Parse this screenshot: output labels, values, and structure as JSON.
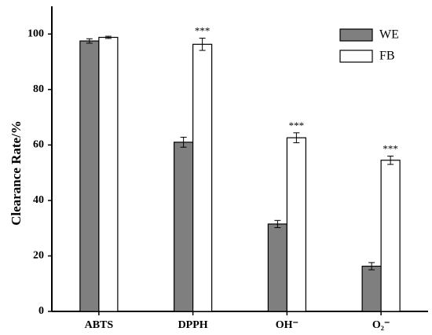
{
  "chart_data": {
    "type": "bar",
    "ylabel": "Clearance Rate/%",
    "categories": [
      "ABTS",
      "DPPH",
      "OH⁻",
      "O₂⁻"
    ],
    "series": [
      {
        "name": "WE",
        "color": "#7f7f7f",
        "values": [
          97.5,
          61,
          31.5,
          16.3
        ],
        "errors": [
          0.8,
          1.8,
          1.3,
          1.3
        ],
        "annotations": [
          null,
          null,
          null,
          null
        ]
      },
      {
        "name": "FB",
        "color": "#ffffff",
        "values": [
          98.8,
          96.3,
          62.6,
          54.5
        ],
        "errors": [
          0.4,
          2.2,
          1.8,
          1.5
        ],
        "annotations": [
          null,
          "***",
          "***",
          "***"
        ]
      }
    ],
    "ylim": [
      0,
      110
    ],
    "yticks": [
      0,
      20,
      40,
      60,
      80,
      100
    ],
    "grid": false,
    "legend": "upper right"
  }
}
